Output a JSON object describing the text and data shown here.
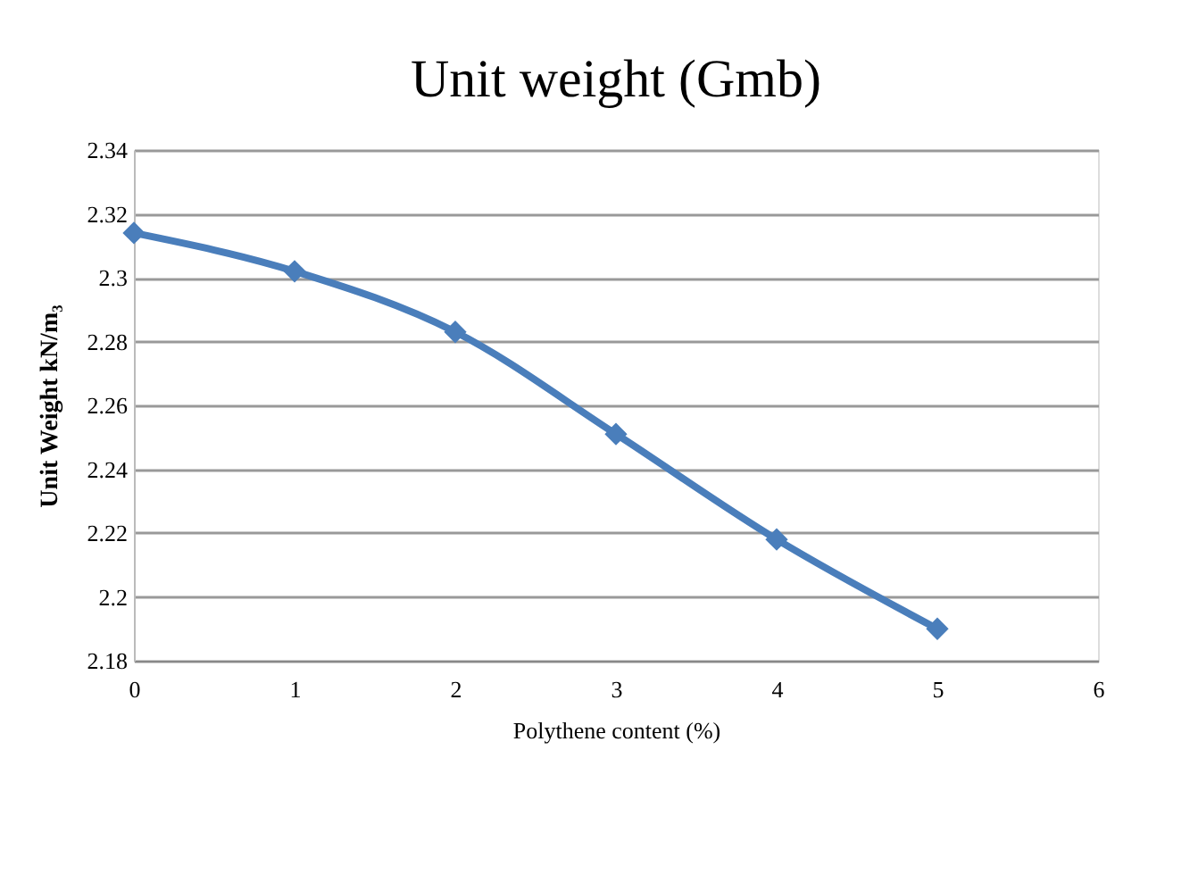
{
  "chart_data": {
    "type": "line",
    "title": "Unit weight (Gmb)",
    "xlabel": "Polythene content (%)",
    "ylabel": "Unit Weight kN/m₃",
    "x": [
      0,
      1,
      2,
      3,
      4,
      5
    ],
    "series": [
      {
        "color": "#4a7ebb",
        "values": [
          2.314,
          2.302,
          2.283,
          2.251,
          2.218,
          2.19
        ]
      }
    ],
    "xlim": [
      0,
      6
    ],
    "xticks": [
      0,
      1,
      2,
      3,
      4,
      5,
      6
    ],
    "ylim": [
      2.18,
      2.34
    ],
    "yticks": [
      2.18,
      {
        "value": 2.2,
        "label": "2.2"
      },
      2.22,
      2.24,
      2.26,
      2.28,
      {
        "value": 2.3,
        "label": "2.3"
      },
      2.32,
      2.34
    ],
    "grid": "y",
    "marker": "diamond",
    "line_style": "solid",
    "legend": false
  }
}
